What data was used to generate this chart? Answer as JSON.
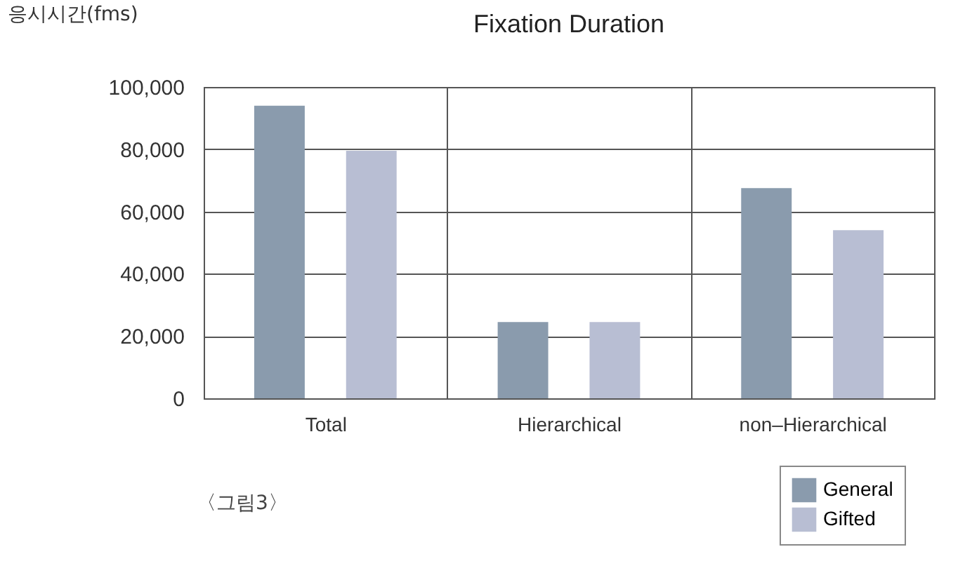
{
  "chart_data": {
    "type": "bar",
    "title": "Fixation Duration",
    "ylabel": "응시시간(fms)",
    "categories": [
      "Total",
      "Hierarchical",
      "non–Hierarchical"
    ],
    "series": [
      {
        "name": "General",
        "color": "#8a9bad",
        "values": [
          94000,
          24500,
          67500
        ]
      },
      {
        "name": "Gifted",
        "color": "#b8bed3",
        "values": [
          79500,
          24500,
          54000
        ]
      }
    ],
    "ylim": [
      0,
      100000
    ],
    "yticks": [
      0,
      {
        "value": 20000,
        "label": "20,000"
      },
      {
        "value": 40000,
        "label": "40,000"
      },
      {
        "value": 60000,
        "label": "60,000"
      },
      {
        "value": 80000,
        "label": "80,000"
      },
      {
        "value": 100000,
        "label": "100,000"
      }
    ],
    "grid": true,
    "legend": "bottom right",
    "annotations": [
      "〈그림3〉"
    ]
  }
}
